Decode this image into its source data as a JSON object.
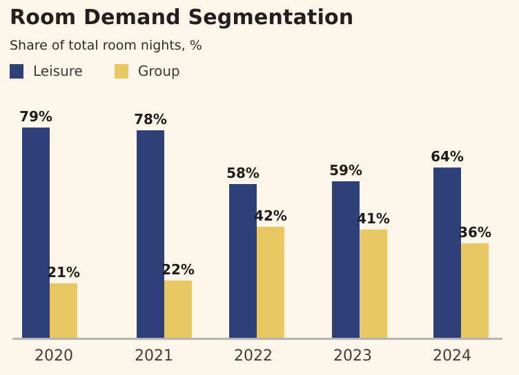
{
  "header": {
    "title": "Room Demand Segmentation",
    "subtitle": "Share of total room nights, %"
  },
  "legend": [
    {
      "label": "Leisure",
      "color": "#2e4077"
    },
    {
      "label": "Group",
      "color": "#e9c862"
    }
  ],
  "chart_data": {
    "type": "bar",
    "title": "Room Demand Segmentation",
    "subtitle": "Share of total room nights, %",
    "categories": [
      "2020",
      "2021",
      "2022",
      "2023",
      "2024"
    ],
    "series": [
      {
        "name": "Leisure",
        "color": "#2e4077",
        "values": [
          79,
          78,
          58,
          59,
          64
        ]
      },
      {
        "name": "Group",
        "color": "#e9c862",
        "values": [
          21,
          22,
          42,
          41,
          36
        ]
      }
    ],
    "value_suffix": "%",
    "xlabel": "",
    "ylabel": "",
    "ylim": [
      0,
      100
    ],
    "grid": false,
    "legend_position": "top-left",
    "data_labels": true
  },
  "colors": {
    "background": "#fbf6e9",
    "leisure": "#2e4077",
    "group": "#e9c862",
    "axis_line": "#b4b4b4",
    "title_text": "#231f20",
    "value_label_text": "#1d1d1d",
    "tick_text": "#3d3d3d"
  }
}
